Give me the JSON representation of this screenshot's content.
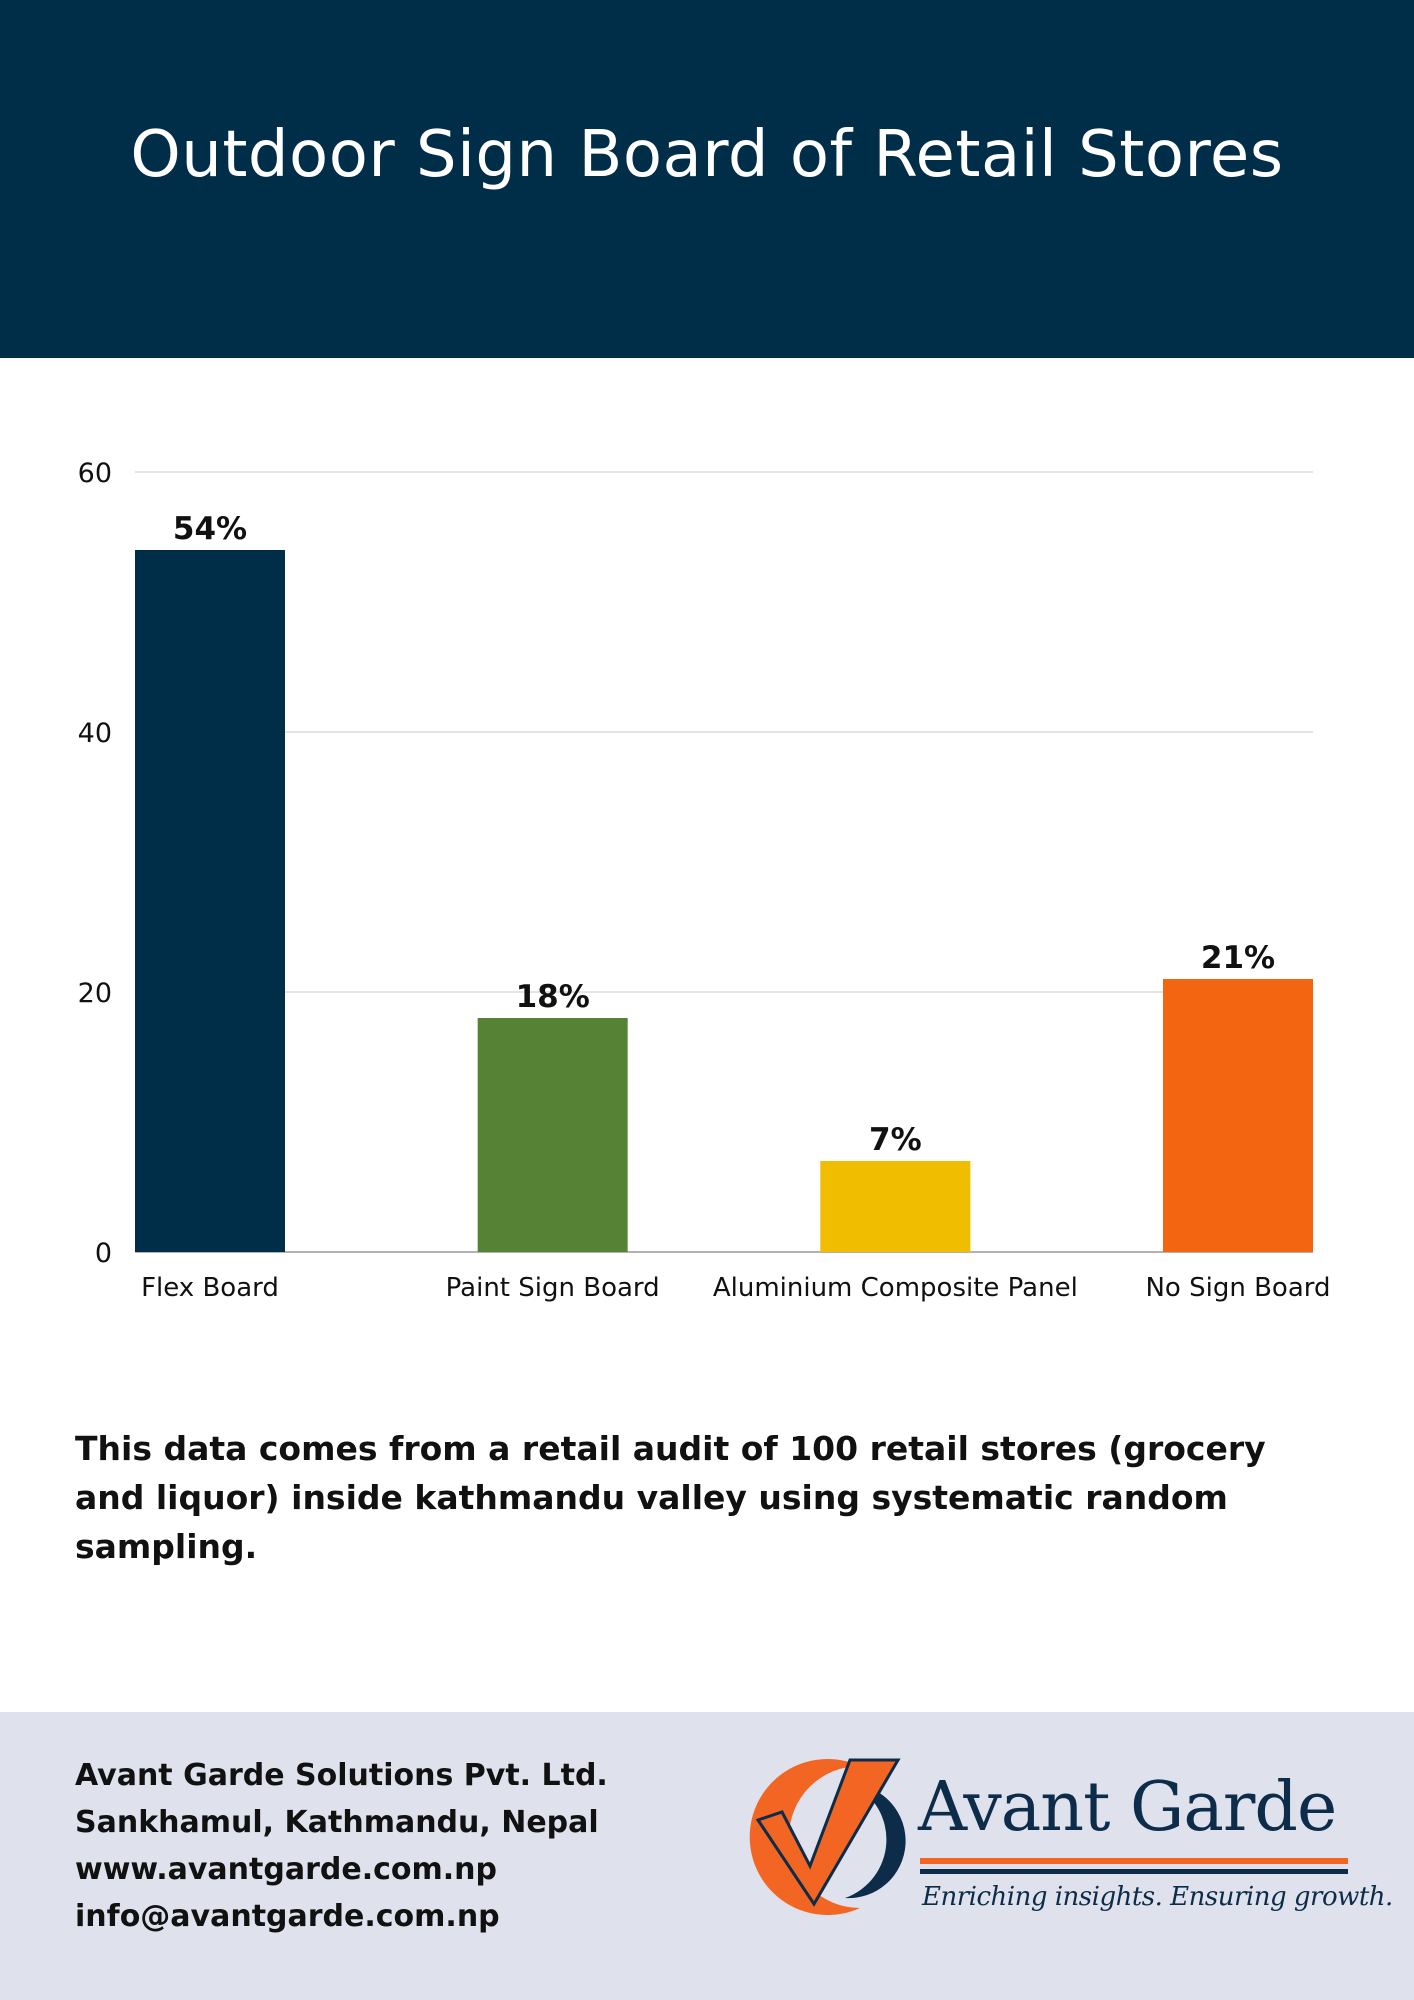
{
  "header": {
    "title": "Outdoor Sign Board of Retail Stores"
  },
  "chart_data": {
    "type": "bar",
    "title": "Outdoor Sign Board of Retail Stores",
    "xlabel": "",
    "ylabel": "",
    "categories": [
      "Flex Board",
      "Paint Sign Board",
      "Aluminium Composite Panel",
      "No Sign Board"
    ],
    "values": [
      54,
      18,
      7,
      21
    ],
    "data_labels": [
      "54%",
      "18%",
      "7%",
      "21%"
    ],
    "colors": [
      "#002d47",
      "#558235",
      "#f0bd00",
      "#f46511"
    ],
    "ylim": [
      0,
      60
    ],
    "yticks": [
      0,
      20,
      40,
      60
    ],
    "grid": true,
    "legend": "none"
  },
  "note": {
    "text": "This data comes from a retail audit of 100 retail stores (grocery and liquor) inside kathmandu valley using systematic random sampling."
  },
  "footer": {
    "company": "Avant Garde Solutions Pvt. Ltd.",
    "address": "Sankhamul, Kathmandu, Nepal",
    "website": "www.avantgarde.com.np",
    "email": "info@avantgarde.com.np"
  },
  "logo": {
    "name": "Avant Garde",
    "tagline": "Enriching insights. Ensuring growth.",
    "icon": "checkmark-circle-icon",
    "colors": {
      "orange": "#f26522",
      "navy": "#0c2c49"
    }
  }
}
